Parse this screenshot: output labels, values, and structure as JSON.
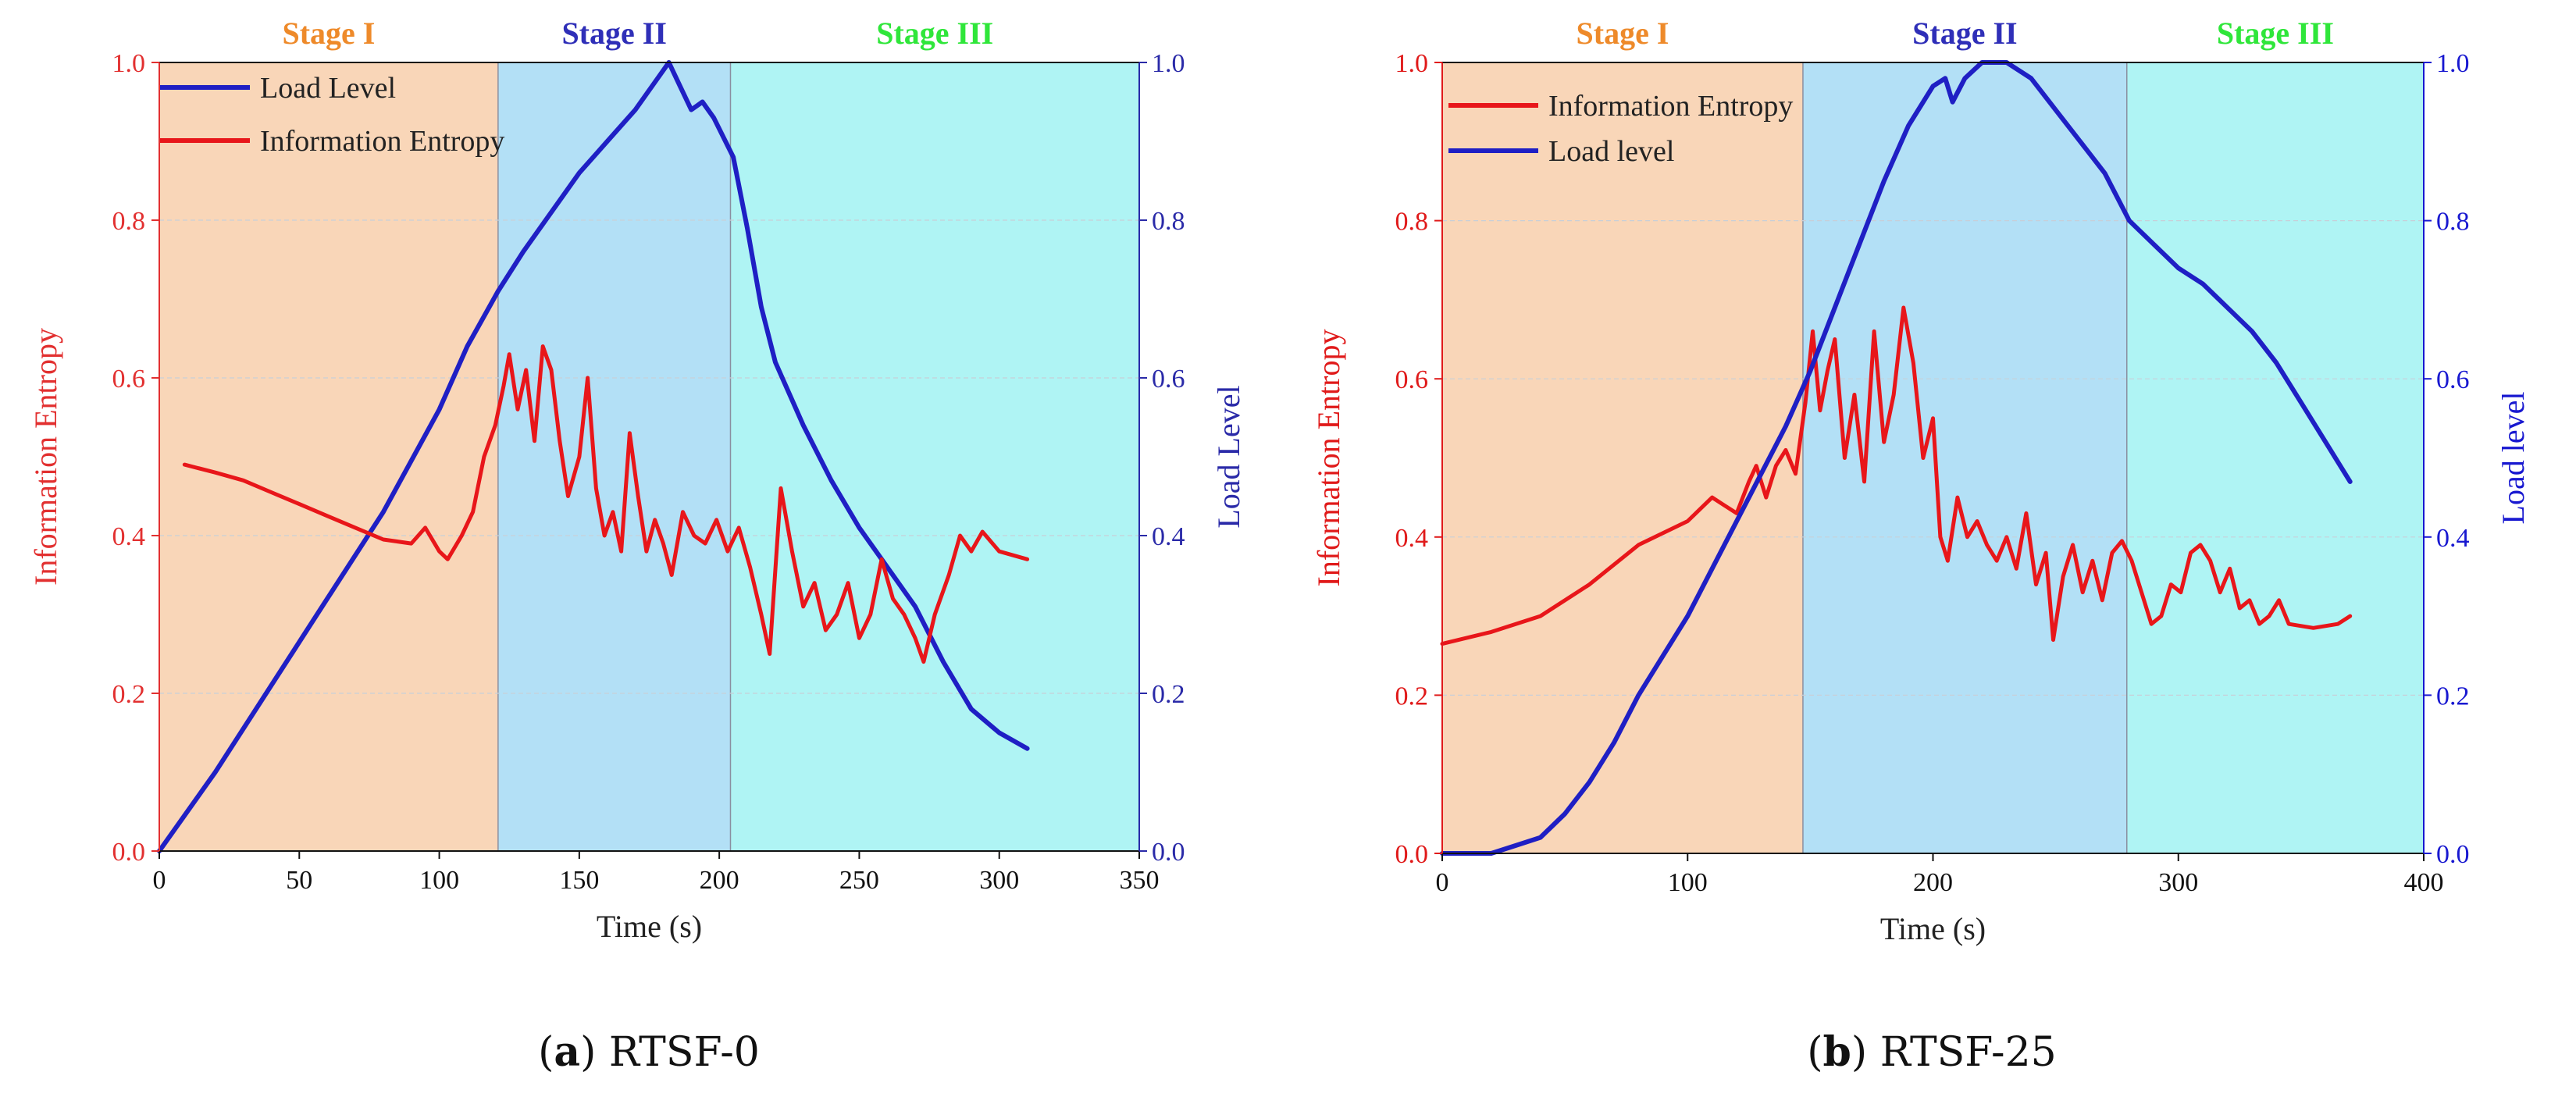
{
  "colors": {
    "stage1": "#f9d6b8",
    "stage2": "#b3e0f6",
    "stage3": "#aff4f4",
    "stage1_text": "#ee8a2a",
    "stage2_text": "#2f2fb8",
    "stage3_text": "#2fe63a",
    "entropy": "#e8161a",
    "load": "#1f1fc4",
    "left_axis_a": "#e23030",
    "right_axis_a": "#2a2aa8",
    "left_axis_b": "#e01a1a",
    "right_axis_b": "#1818d0"
  },
  "chart_data": [
    {
      "id": "a",
      "type": "line",
      "caption": {
        "letter": "a",
        "text": "RTSF-0"
      },
      "xlabel": "Time (s)",
      "ylabel_left": "Information Entropy",
      "ylabel_right": "Load Level",
      "xlim": [
        0,
        350
      ],
      "ylim_left": [
        0,
        1
      ],
      "ylim_right": [
        0,
        1
      ],
      "x_ticks": [
        "0",
        "50",
        "100",
        "150",
        "200",
        "250",
        "300",
        "350"
      ],
      "y_ticks_left": [
        "0.0",
        "0.2",
        "0.4",
        "0.6",
        "0.8",
        "1.0"
      ],
      "y_ticks_right": [
        "0.0",
        "0.2",
        "0.4",
        "0.6",
        "0.8",
        "1.0"
      ],
      "grid": true,
      "legend_position": "top-left",
      "stages": [
        {
          "label": "Stage I",
          "from": 0,
          "to": 121
        },
        {
          "label": "Stage II",
          "from": 121,
          "to": 204
        },
        {
          "label": "Stage III",
          "from": 204,
          "to": 350
        }
      ],
      "series": [
        {
          "name": "Load Level",
          "axis": "right",
          "points": [
            [
              0,
              0
            ],
            [
              20,
              0.1
            ],
            [
              40,
              0.21
            ],
            [
              60,
              0.32
            ],
            [
              80,
              0.43
            ],
            [
              100,
              0.56
            ],
            [
              110,
              0.64
            ],
            [
              121,
              0.71
            ],
            [
              130,
              0.76
            ],
            [
              140,
              0.81
            ],
            [
              150,
              0.86
            ],
            [
              160,
              0.9
            ],
            [
              170,
              0.94
            ],
            [
              178,
              0.98
            ],
            [
              182,
              1.0
            ],
            [
              186,
              0.97
            ],
            [
              190,
              0.94
            ],
            [
              194,
              0.95
            ],
            [
              198,
              0.93
            ],
            [
              205,
              0.88
            ],
            [
              210,
              0.79
            ],
            [
              215,
              0.69
            ],
            [
              220,
              0.62
            ],
            [
              230,
              0.54
            ],
            [
              240,
              0.47
            ],
            [
              250,
              0.41
            ],
            [
              260,
              0.36
            ],
            [
              270,
              0.31
            ],
            [
              280,
              0.24
            ],
            [
              290,
              0.18
            ],
            [
              300,
              0.15
            ],
            [
              310,
              0.13
            ]
          ]
        },
        {
          "name": "Information Entropy",
          "axis": "left",
          "points": [
            [
              9,
              0.49
            ],
            [
              20,
              0.48
            ],
            [
              30,
              0.47
            ],
            [
              40,
              0.455
            ],
            [
              50,
              0.44
            ],
            [
              60,
              0.425
            ],
            [
              70,
              0.41
            ],
            [
              80,
              0.395
            ],
            [
              90,
              0.39
            ],
            [
              95,
              0.41
            ],
            [
              100,
              0.38
            ],
            [
              103,
              0.37
            ],
            [
              108,
              0.4
            ],
            [
              112,
              0.43
            ],
            [
              116,
              0.5
            ],
            [
              120,
              0.54
            ],
            [
              123,
              0.59
            ],
            [
              125,
              0.63
            ],
            [
              128,
              0.56
            ],
            [
              131,
              0.61
            ],
            [
              134,
              0.52
            ],
            [
              137,
              0.64
            ],
            [
              140,
              0.61
            ],
            [
              143,
              0.52
            ],
            [
              146,
              0.45
            ],
            [
              150,
              0.5
            ],
            [
              153,
              0.6
            ],
            [
              156,
              0.46
            ],
            [
              159,
              0.4
            ],
            [
              162,
              0.43
            ],
            [
              165,
              0.38
            ],
            [
              168,
              0.53
            ],
            [
              171,
              0.45
            ],
            [
              174,
              0.38
            ],
            [
              177,
              0.42
            ],
            [
              180,
              0.39
            ],
            [
              183,
              0.35
            ],
            [
              187,
              0.43
            ],
            [
              191,
              0.4
            ],
            [
              195,
              0.39
            ],
            [
              199,
              0.42
            ],
            [
              203,
              0.38
            ],
            [
              207,
              0.41
            ],
            [
              211,
              0.36
            ],
            [
              215,
              0.3
            ],
            [
              218,
              0.25
            ],
            [
              222,
              0.46
            ],
            [
              226,
              0.38
            ],
            [
              230,
              0.31
            ],
            [
              234,
              0.34
            ],
            [
              238,
              0.28
            ],
            [
              242,
              0.3
            ],
            [
              246,
              0.34
            ],
            [
              250,
              0.27
            ],
            [
              254,
              0.3
            ],
            [
              258,
              0.37
            ],
            [
              262,
              0.32
            ],
            [
              266,
              0.3
            ],
            [
              270,
              0.27
            ],
            [
              273,
              0.24
            ],
            [
              277,
              0.3
            ],
            [
              282,
              0.35
            ],
            [
              286,
              0.4
            ],
            [
              290,
              0.38
            ],
            [
              294,
              0.405
            ],
            [
              300,
              0.38
            ],
            [
              310,
              0.37
            ]
          ]
        }
      ]
    },
    {
      "id": "b",
      "type": "line",
      "caption": {
        "letter": "b",
        "text": "RTSF-25"
      },
      "xlabel": "Time (s)",
      "ylabel_left": "Information Entropy",
      "ylabel_right": "Load level",
      "xlim": [
        0,
        400
      ],
      "ylim_left": [
        0,
        1
      ],
      "ylim_right": [
        0,
        1
      ],
      "x_ticks": [
        "0",
        "100",
        "200",
        "300",
        "400"
      ],
      "y_ticks_left": [
        "0.0",
        "0.2",
        "0.4",
        "0.6",
        "0.8",
        "1.0"
      ],
      "y_ticks_right": [
        "0.0",
        "0.2",
        "0.4",
        "0.6",
        "0.8",
        "1.0"
      ],
      "grid": true,
      "legend_position": "top-left",
      "stages": [
        {
          "label": "Stage I",
          "from": 0,
          "to": 147
        },
        {
          "label": "Stage II",
          "from": 147,
          "to": 279
        },
        {
          "label": "Stage III",
          "from": 279,
          "to": 400
        }
      ],
      "series": [
        {
          "name": "Information Entropy",
          "axis": "left",
          "points": [
            [
              0,
              0.265
            ],
            [
              20,
              0.28
            ],
            [
              40,
              0.3
            ],
            [
              60,
              0.34
            ],
            [
              80,
              0.39
            ],
            [
              100,
              0.42
            ],
            [
              110,
              0.45
            ],
            [
              115,
              0.44
            ],
            [
              120,
              0.43
            ],
            [
              125,
              0.47
            ],
            [
              128,
              0.49
            ],
            [
              132,
              0.45
            ],
            [
              136,
              0.49
            ],
            [
              140,
              0.51
            ],
            [
              144,
              0.48
            ],
            [
              148,
              0.57
            ],
            [
              151,
              0.66
            ],
            [
              154,
              0.56
            ],
            [
              157,
              0.61
            ],
            [
              160,
              0.65
            ],
            [
              164,
              0.5
            ],
            [
              168,
              0.58
            ],
            [
              172,
              0.47
            ],
            [
              176,
              0.66
            ],
            [
              180,
              0.52
            ],
            [
              184,
              0.58
            ],
            [
              188,
              0.69
            ],
            [
              192,
              0.62
            ],
            [
              196,
              0.5
            ],
            [
              200,
              0.55
            ],
            [
              203,
              0.4
            ],
            [
              206,
              0.37
            ],
            [
              210,
              0.45
            ],
            [
              214,
              0.4
            ],
            [
              218,
              0.42
            ],
            [
              222,
              0.39
            ],
            [
              226,
              0.37
            ],
            [
              230,
              0.4
            ],
            [
              234,
              0.36
            ],
            [
              238,
              0.43
            ],
            [
              242,
              0.34
            ],
            [
              246,
              0.38
            ],
            [
              249,
              0.27
            ],
            [
              253,
              0.35
            ],
            [
              257,
              0.39
            ],
            [
              261,
              0.33
            ],
            [
              265,
              0.37
            ],
            [
              269,
              0.32
            ],
            [
              273,
              0.38
            ],
            [
              277,
              0.395
            ],
            [
              281,
              0.37
            ],
            [
              285,
              0.33
            ],
            [
              289,
              0.29
            ],
            [
              293,
              0.3
            ],
            [
              297,
              0.34
            ],
            [
              301,
              0.33
            ],
            [
              305,
              0.38
            ],
            [
              309,
              0.39
            ],
            [
              313,
              0.37
            ],
            [
              317,
              0.33
            ],
            [
              321,
              0.36
            ],
            [
              325,
              0.31
            ],
            [
              329,
              0.32
            ],
            [
              333,
              0.29
            ],
            [
              337,
              0.3
            ],
            [
              341,
              0.32
            ],
            [
              345,
              0.29
            ],
            [
              355,
              0.285
            ],
            [
              365,
              0.29
            ],
            [
              370,
              0.3
            ]
          ]
        },
        {
          "name": "Load level",
          "axis": "right",
          "points": [
            [
              0,
              0
            ],
            [
              20,
              0
            ],
            [
              30,
              0.01
            ],
            [
              40,
              0.02
            ],
            [
              50,
              0.05
            ],
            [
              60,
              0.09
            ],
            [
              70,
              0.14
            ],
            [
              80,
              0.2
            ],
            [
              90,
              0.25
            ],
            [
              100,
              0.3
            ],
            [
              110,
              0.36
            ],
            [
              120,
              0.42
            ],
            [
              130,
              0.48
            ],
            [
              140,
              0.54
            ],
            [
              150,
              0.61
            ],
            [
              160,
              0.69
            ],
            [
              170,
              0.77
            ],
            [
              180,
              0.85
            ],
            [
              190,
              0.92
            ],
            [
              200,
              0.97
            ],
            [
              205,
              0.98
            ],
            [
              208,
              0.95
            ],
            [
              213,
              0.98
            ],
            [
              220,
              1.0
            ],
            [
              230,
              1.0
            ],
            [
              240,
              0.98
            ],
            [
              250,
              0.94
            ],
            [
              260,
              0.9
            ],
            [
              270,
              0.86
            ],
            [
              280,
              0.8
            ],
            [
              290,
              0.77
            ],
            [
              300,
              0.74
            ],
            [
              310,
              0.72
            ],
            [
              320,
              0.69
            ],
            [
              330,
              0.66
            ],
            [
              340,
              0.62
            ],
            [
              350,
              0.57
            ],
            [
              360,
              0.52
            ],
            [
              370,
              0.47
            ]
          ]
        }
      ]
    }
  ]
}
